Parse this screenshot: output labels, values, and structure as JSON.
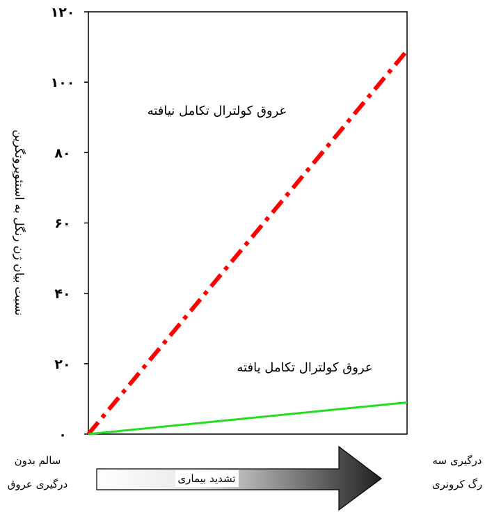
{
  "chart_data": {
    "type": "line",
    "ylabel": "نسبت بیان ژن رنگل به استئوپروتگرین",
    "ylim": [
      0,
      120
    ],
    "yticks": [
      "۰",
      "۲۰",
      "۴۰",
      "۶۰",
      "۸۰",
      "۱۰۰",
      "۱۲۰"
    ],
    "ytick_values": [
      0,
      20,
      40,
      60,
      80,
      100,
      120
    ],
    "x_start_label_line1": "سالم بدون",
    "x_start_label_line2": "درگیری عروق",
    "x_end_label_line1": "درگیری سه",
    "x_end_label_line2": "رگ کرونری",
    "arrow_label": "تشدید بیماری",
    "series": [
      {
        "name": "عروق کولترال تکامل نیافته",
        "x": [
          0,
          1
        ],
        "values": [
          0,
          109
        ],
        "color": "#ff0000",
        "style": "dash-dot"
      },
      {
        "name": "عروق کولترال تکامل یافته",
        "x": [
          0,
          1
        ],
        "values": [
          0,
          9
        ],
        "color": "#22dd22",
        "style": "solid"
      }
    ],
    "grid": false
  }
}
